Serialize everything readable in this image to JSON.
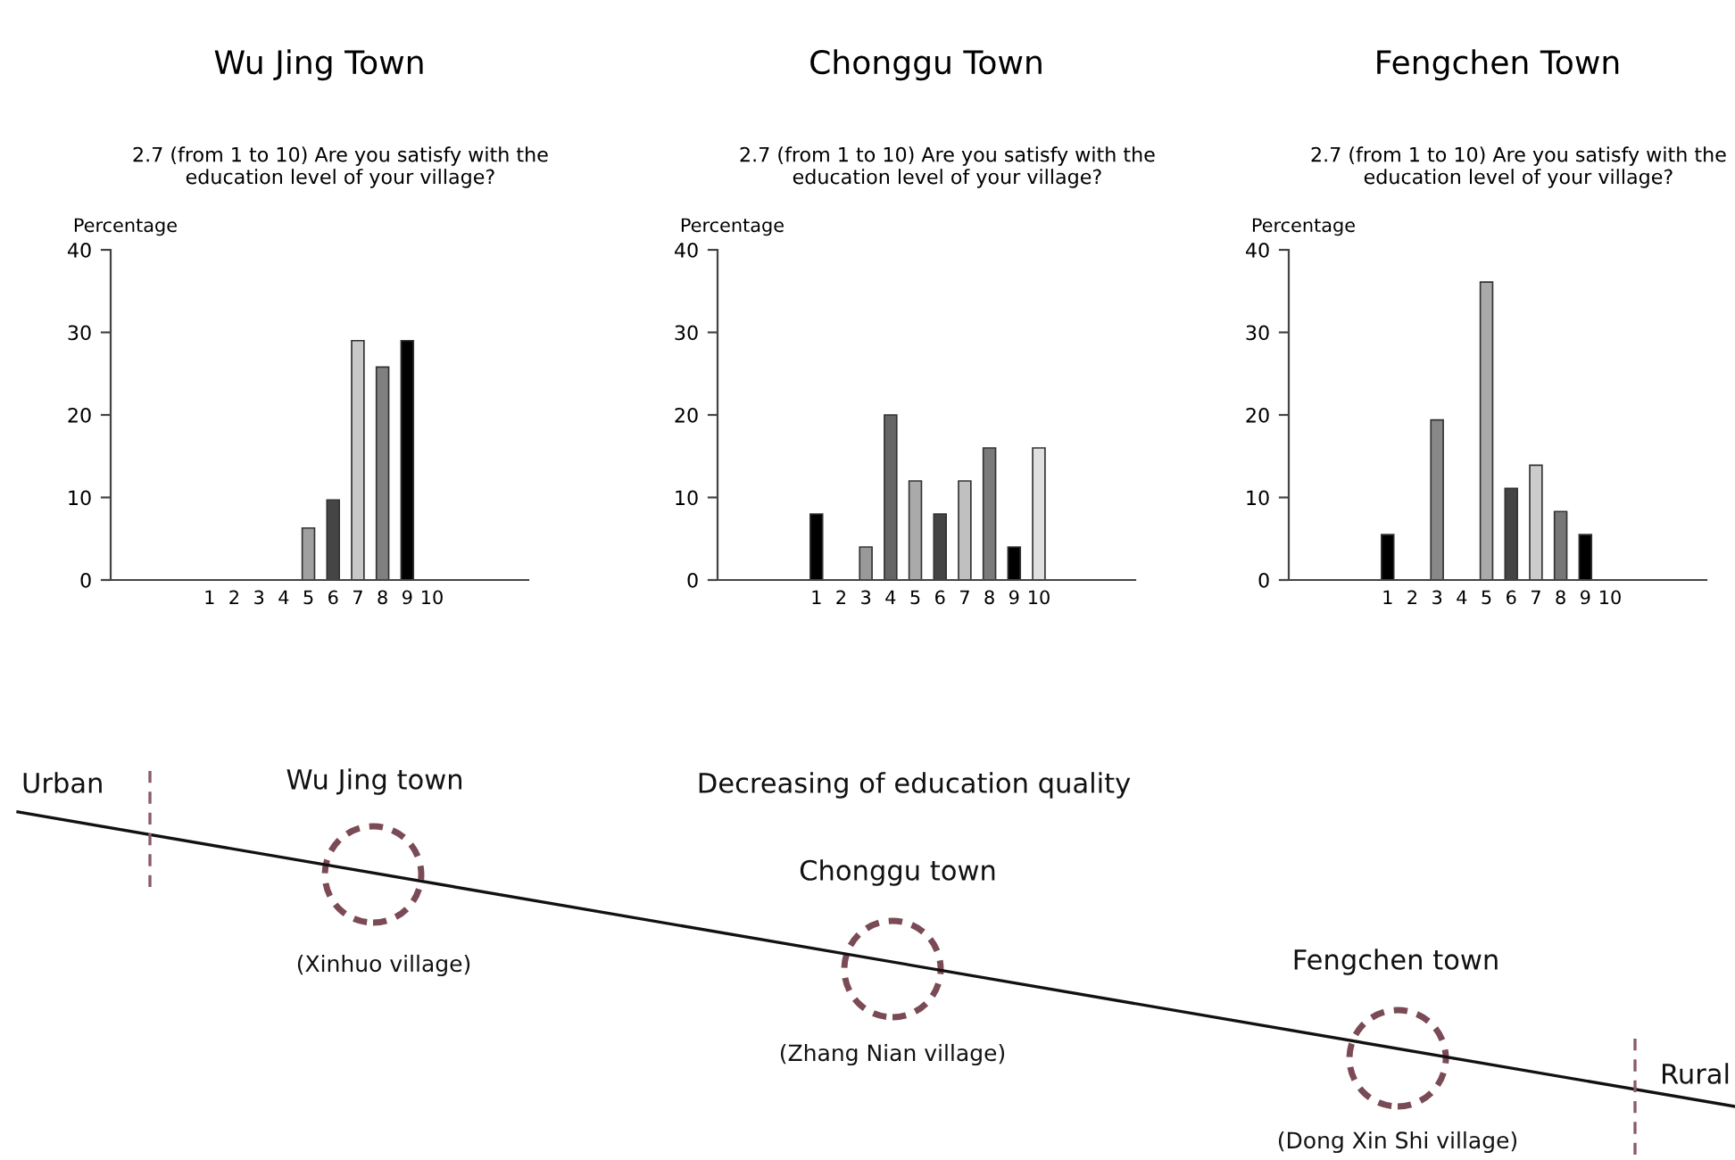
{
  "chart_data": [
    {
      "type": "bar",
      "title": "Wu Jing Town",
      "subtitle": "2.7 (from 1 to 10) Are you satisfy with the\neducation level of your village?",
      "ylabel": "Percentage",
      "categories": [
        "1",
        "2",
        "3",
        "4",
        "5",
        "6",
        "7",
        "8",
        "9",
        "10"
      ],
      "values": [
        null,
        null,
        null,
        null,
        6.3,
        9.7,
        29,
        25.8,
        29,
        null
      ],
      "colors": [
        null,
        null,
        null,
        null,
        "#a0a0a0",
        "#454545",
        "#c8c8c8",
        "#808080",
        "#000000",
        null
      ],
      "ylim": [
        0,
        40
      ],
      "yticks": [
        0,
        10,
        20,
        30,
        40
      ],
      "grid": false,
      "legend": false
    },
    {
      "type": "bar",
      "title": "Chonggu Town",
      "subtitle": "2.7 (from 1 to 10) Are you satisfy with the\neducation level of your village?",
      "ylabel": "Percentage",
      "categories": [
        "1",
        "2",
        "3",
        "4",
        "5",
        "6",
        "7",
        "8",
        "9",
        "10"
      ],
      "values": [
        8,
        null,
        4,
        20,
        12,
        8,
        12,
        16,
        4,
        16
      ],
      "colors": [
        "#000000",
        null,
        "#999999",
        "#666666",
        "#aaaaaa",
        "#444444",
        "#c0c0c0",
        "#7a7a7a",
        "#000000",
        "#e0e0e0"
      ],
      "ylim": [
        0,
        40
      ],
      "yticks": [
        0,
        10,
        20,
        30,
        40
      ],
      "grid": false,
      "legend": false
    },
    {
      "type": "bar",
      "title": "Fengchen Town",
      "subtitle": "2.7 (from 1 to 10) Are you satisfy with the\neducation level of your village?",
      "ylabel": "Percentage",
      "categories": [
        "1",
        "2",
        "3",
        "4",
        "5",
        "6",
        "7",
        "8",
        "9",
        "10"
      ],
      "values": [
        5.5,
        null,
        19.4,
        null,
        36.1,
        11.1,
        13.9,
        8.3,
        5.5,
        null
      ],
      "colors": [
        "#000000",
        null,
        "#888888",
        null,
        "#aaaaaa",
        "#444444",
        "#cccccc",
        "#777777",
        "#000000",
        null
      ],
      "ylim": [
        0,
        40
      ],
      "yticks": [
        0,
        10,
        20,
        30,
        40
      ],
      "grid": false,
      "legend": false
    },
    {
      "type": "other",
      "annotations": [
        "Urban",
        "Wu Jing town",
        "Decreasing of education quality",
        "Chonggu town",
        "Fengchen town",
        "(Xinhuo village)",
        "(Zhang Nian village)",
        "(Dong Xin Shi village)",
        "Rural"
      ]
    }
  ]
}
